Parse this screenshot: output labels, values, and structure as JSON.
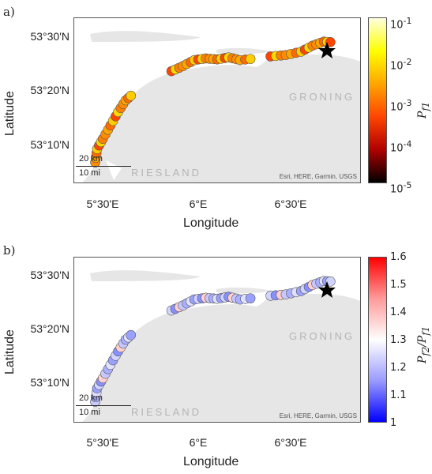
{
  "panels": [
    {
      "letter": "a)",
      "top": 8
    },
    {
      "letter": "b)",
      "top": 310
    }
  ],
  "axes": {
    "ylabel": "Latitude",
    "xlabel": "Longitude",
    "yticks": [
      "53°30'N",
      "53°20'N",
      "53°10'N"
    ],
    "xticks": [
      "5°30'E",
      "6°E",
      "6°30'E"
    ]
  },
  "map_labels": {
    "groningen": "GRONING",
    "friesland": "RIESLAND",
    "attribution": "Esri, HERE, Garmin, USGS",
    "scale_km": "20 km",
    "scale_mi": "10 mi"
  },
  "colorbar_a": {
    "title": "P_f1",
    "ticks": [
      "10^-1",
      "10^-2",
      "10^-3",
      "10^-4",
      "10^-5"
    ],
    "scale": "log",
    "range": [
      1e-05,
      0.1
    ]
  },
  "colorbar_b": {
    "title": "P_f2/P_f1",
    "ticks": [
      "1.6",
      "1.5",
      "1.4",
      "1.3",
      "1.2",
      "1.1",
      "1"
    ],
    "range": [
      1,
      1.6
    ]
  },
  "colors": {
    "land": "#e6e6e6",
    "water": "#ffffff",
    "star": "#000000"
  },
  "chart_data": {
    "type": "scatter",
    "track": [
      [
        5.46,
        53.1
      ],
      [
        5.47,
        53.14
      ],
      [
        5.5,
        53.17
      ],
      [
        5.54,
        53.21
      ],
      [
        5.58,
        53.25
      ],
      [
        5.62,
        53.285
      ],
      [
        5.66,
        53.305
      ],
      [
        5.86,
        53.372
      ],
      [
        5.92,
        53.387
      ],
      [
        5.98,
        53.405
      ],
      [
        6.04,
        53.41
      ],
      [
        6.1,
        53.407
      ],
      [
        6.16,
        53.413
      ],
      [
        6.22,
        53.405
      ],
      [
        6.3,
        53.41
      ],
      [
        6.38,
        53.416
      ],
      [
        6.46,
        53.42
      ],
      [
        6.54,
        53.43
      ],
      [
        6.6,
        53.448
      ],
      [
        6.66,
        53.46
      ],
      [
        6.71,
        53.458
      ]
    ],
    "star": [
      6.575,
      53.45
    ]
  }
}
